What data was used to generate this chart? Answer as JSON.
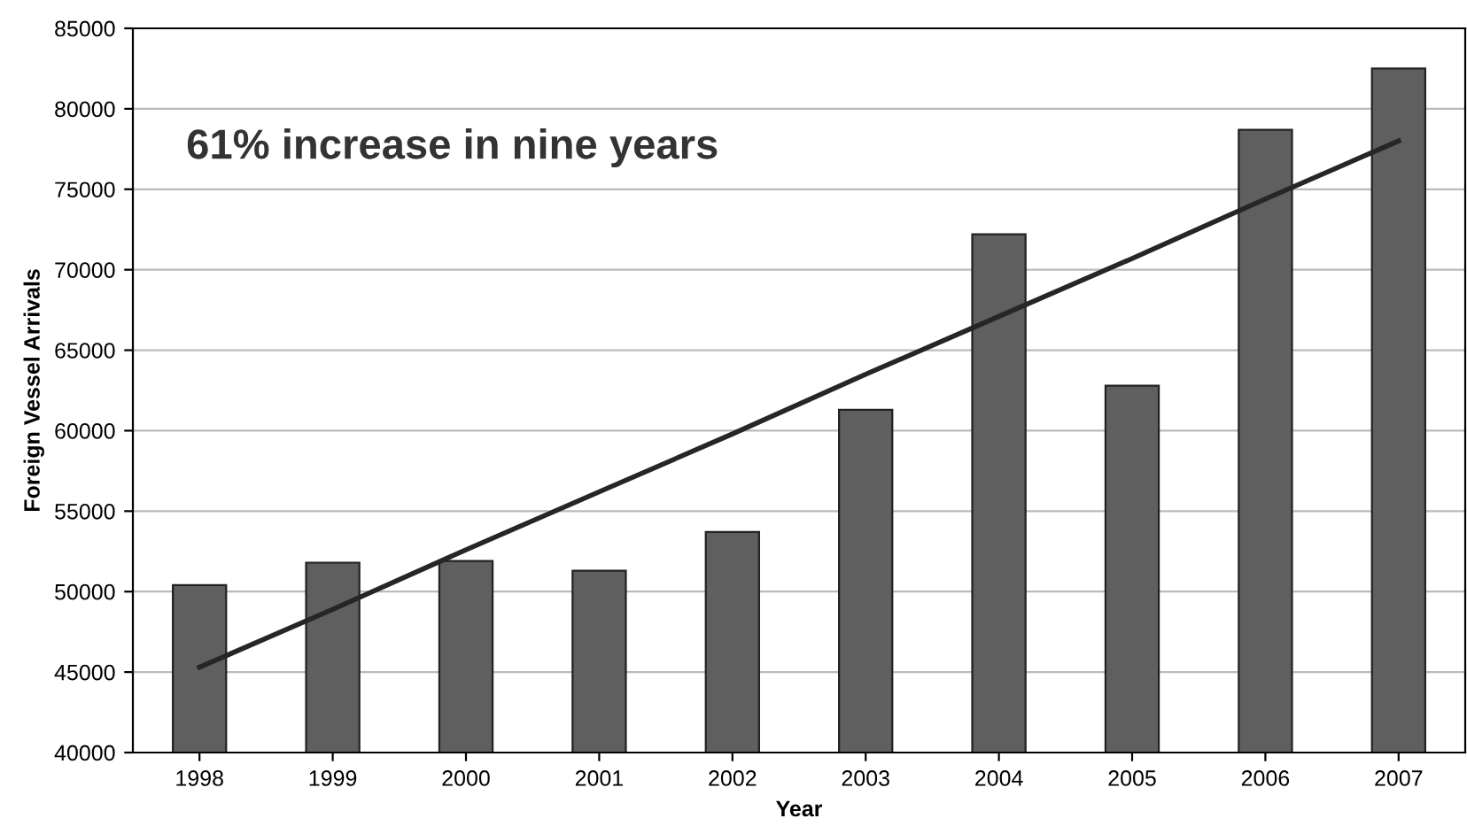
{
  "chart_data": {
    "type": "bar",
    "xlabel": "Year",
    "ylabel": "Foreign Vessel Arrivals",
    "categories": [
      "1998",
      "1999",
      "2000",
      "2001",
      "2002",
      "2003",
      "2004",
      "2005",
      "2006",
      "2007"
    ],
    "series": [
      {
        "color": "#5f5f5f",
        "values": [
          50400,
          51800,
          51900,
          51300,
          53700,
          61300,
          72200,
          62800,
          78700,
          82500
        ]
      },
      {
        "type": "line",
        "color": "#262626",
        "values": [
          45300,
          48900,
          52600,
          56200,
          59800,
          63500,
          67100,
          70700,
          74400,
          78000
        ]
      }
    ],
    "ylim": [
      40000,
      85000
    ],
    "yticks": [
      40000,
      45000,
      50000,
      55000,
      60000,
      65000,
      70000,
      75000,
      80000,
      85000
    ],
    "grid": "y",
    "legend": false,
    "annotations": [
      "61% increase in nine years"
    ]
  }
}
